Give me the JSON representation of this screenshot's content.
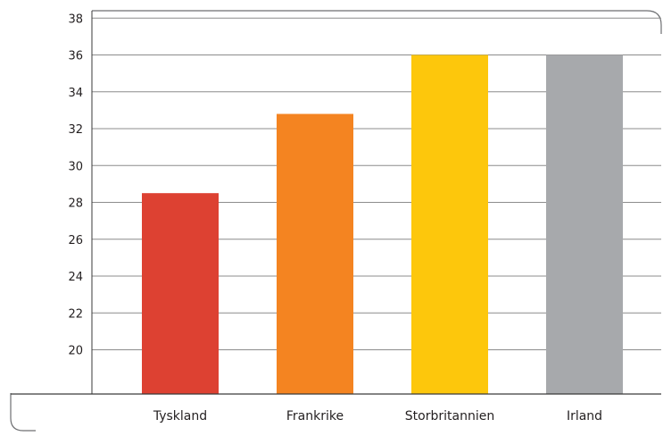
{
  "chart_data": {
    "type": "bar",
    "title": "",
    "xlabel": "",
    "ylabel": "",
    "categories": [
      "Tyskland",
      "Frankrike",
      "Storbritannien",
      "Irland"
    ],
    "values": [
      28.5,
      32.8,
      36,
      36
    ],
    "colors": [
      "#dd4132",
      "#f48421",
      "#fdc70c",
      "#a7a9ac"
    ],
    "y_ticks": [
      20,
      22,
      24,
      26,
      28,
      30,
      32,
      34,
      36,
      38
    ],
    "ylim": [
      17.6,
      38.4
    ],
    "grid": true,
    "legend": "none"
  }
}
